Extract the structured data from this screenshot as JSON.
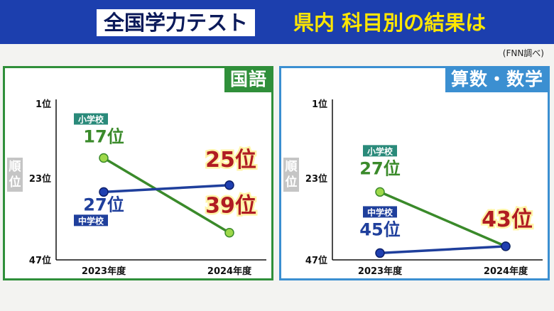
{
  "header": {
    "title_left": "全国学力テスト",
    "title_right": "県内 科目別の結果は",
    "source": "(FNN調べ)"
  },
  "colors": {
    "elementary": "#3a8a2a",
    "junior_high": "#1f3f9c",
    "rank_2024": "#b01c22",
    "panel_left": "#2f8f3a",
    "panel_right": "#3b8fd1"
  },
  "chart_data": [
    {
      "type": "line",
      "title": "国語",
      "ylabel": "順位",
      "y_ticks": [
        "1位",
        "23位",
        "47位"
      ],
      "ylim": [
        47,
        1
      ],
      "categories": [
        "2023年度",
        "2024年度"
      ],
      "series": [
        {
          "name": "小学校",
          "values": [
            17,
            39
          ],
          "labels": [
            "17位",
            "39位"
          ]
        },
        {
          "name": "中学校",
          "values": [
            27,
            25
          ],
          "labels": [
            "27位",
            "25位"
          ]
        }
      ]
    },
    {
      "type": "line",
      "title": "算数・数学",
      "ylabel": "順位",
      "y_ticks": [
        "1位",
        "23位",
        "47位"
      ],
      "ylim": [
        47,
        1
      ],
      "categories": [
        "2023年度",
        "2024年度"
      ],
      "series": [
        {
          "name": "小学校",
          "values": [
            27,
            43
          ],
          "labels": [
            "27位",
            "43位"
          ]
        },
        {
          "name": "中学校",
          "values": [
            45,
            43
          ],
          "labels": [
            "45位",
            "43位"
          ]
        }
      ]
    }
  ]
}
